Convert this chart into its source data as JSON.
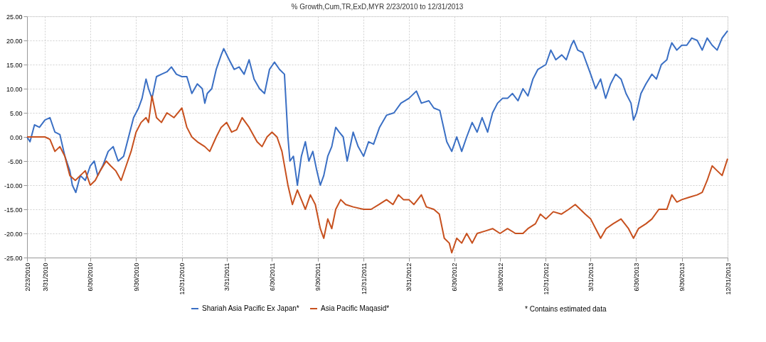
{
  "chart_data": {
    "type": "line",
    "title": "% Growth,Cum,TR,ExD,MYR 2/23/2010 to 12/31/2013",
    "annotations": [
      "* Contains estimated data"
    ],
    "legend": "bottom",
    "grid": true,
    "marker": "none",
    "line_style": "solid",
    "xlim": [
      "2010-02-23",
      "2013-12-31"
    ],
    "xticks": [
      {
        "value": "2010-02-23",
        "label": "2/23/2010"
      },
      {
        "value": "2010-03-31",
        "label": "3/31/2010"
      },
      {
        "value": "2010-06-30",
        "label": "6/30/2010"
      },
      {
        "value": "2010-09-30",
        "label": "9/30/2010"
      },
      {
        "value": "2010-12-31",
        "label": "12/31/2010"
      },
      {
        "value": "2011-03-31",
        "label": "3/31/2011"
      },
      {
        "value": "2011-06-30",
        "label": "6/30/2011"
      },
      {
        "value": "2011-09-30",
        "label": "9/30/2011"
      },
      {
        "value": "2011-12-31",
        "label": "12/31/2011"
      },
      {
        "value": "2012-03-31",
        "label": "3/31/2012"
      },
      {
        "value": "2012-06-30",
        "label": "6/30/2012"
      },
      {
        "value": "2012-09-30",
        "label": "9/30/2012"
      },
      {
        "value": "2012-12-31",
        "label": "12/31/2012"
      },
      {
        "value": "2013-03-31",
        "label": "3/31/2013"
      },
      {
        "value": "2013-06-30",
        "label": "6/30/2013"
      },
      {
        "value": "2013-09-30",
        "label": "9/30/2013"
      },
      {
        "value": "2013-12-31",
        "label": "12/31/2013"
      }
    ],
    "ylim": [
      -25,
      25
    ],
    "yticks": [
      {
        "value": -25,
        "label": "-25.00"
      },
      {
        "value": -20,
        "label": "-20.00"
      },
      {
        "value": -15,
        "label": "-15.00"
      },
      {
        "value": -10,
        "label": "-10.00"
      },
      {
        "value": -5,
        "label": "-5.00"
      },
      {
        "value": 0,
        "label": "0.00"
      },
      {
        "value": 5,
        "label": "5.00"
      },
      {
        "value": 10,
        "label": "10.00"
      },
      {
        "value": 15,
        "label": "15.00"
      },
      {
        "value": 20,
        "label": "20.00"
      },
      {
        "value": 25,
        "label": "25.00"
      }
    ],
    "series": [
      {
        "name": "Shariah Asia Pacific Ex Japan*",
        "color": "#3a6fc4",
        "x": [
          "2010-02-23",
          "2010-03-01",
          "2010-03-10",
          "2010-03-20",
          "2010-03-31",
          "2010-04-10",
          "2010-04-20",
          "2010-04-30",
          "2010-05-10",
          "2010-05-20",
          "2010-05-25",
          "2010-06-01",
          "2010-06-10",
          "2010-06-20",
          "2010-06-30",
          "2010-07-08",
          "2010-07-15",
          "2010-07-25",
          "2010-08-05",
          "2010-08-15",
          "2010-08-25",
          "2010-09-05",
          "2010-09-15",
          "2010-09-25",
          "2010-10-05",
          "2010-10-12",
          "2010-10-20",
          "2010-10-25",
          "2010-11-01",
          "2010-11-10",
          "2010-11-20",
          "2010-12-01",
          "2010-12-10",
          "2010-12-20",
          "2010-12-31",
          "2011-01-10",
          "2011-01-20",
          "2011-01-31",
          "2011-02-10",
          "2011-02-15",
          "2011-02-20",
          "2011-03-01",
          "2011-03-10",
          "2011-03-20",
          "2011-03-25",
          "2011-04-05",
          "2011-04-15",
          "2011-04-25",
          "2011-05-05",
          "2011-05-15",
          "2011-05-25",
          "2011-06-05",
          "2011-06-15",
          "2011-06-25",
          "2011-07-05",
          "2011-07-15",
          "2011-07-25",
          "2011-08-01",
          "2011-08-05",
          "2011-08-12",
          "2011-08-20",
          "2011-08-28",
          "2011-09-05",
          "2011-09-12",
          "2011-09-20",
          "2011-09-28",
          "2011-10-05",
          "2011-10-12",
          "2011-10-20",
          "2011-10-28",
          "2011-11-05",
          "2011-11-12",
          "2011-11-20",
          "2011-11-28",
          "2011-12-10",
          "2011-12-20",
          "2011-12-31",
          "2012-01-10",
          "2012-01-20",
          "2012-02-01",
          "2012-02-15",
          "2012-03-01",
          "2012-03-15",
          "2012-03-31",
          "2012-04-15",
          "2012-04-25",
          "2012-05-10",
          "2012-05-20",
          "2012-06-01",
          "2012-06-15",
          "2012-06-25",
          "2012-07-05",
          "2012-07-15",
          "2012-07-25",
          "2012-08-05",
          "2012-08-15",
          "2012-08-25",
          "2012-09-05",
          "2012-09-15",
          "2012-09-25",
          "2012-10-05",
          "2012-10-15",
          "2012-10-25",
          "2012-11-05",
          "2012-11-15",
          "2012-11-25",
          "2012-12-05",
          "2012-12-15",
          "2012-12-31",
          "2013-01-10",
          "2013-01-20",
          "2013-02-01",
          "2013-02-10",
          "2013-02-20",
          "2013-02-25",
          "2013-03-05",
          "2013-03-15",
          "2013-03-31",
          "2013-04-10",
          "2013-04-20",
          "2013-04-30",
          "2013-05-10",
          "2013-05-20",
          "2013-05-31",
          "2013-06-10",
          "2013-06-20",
          "2013-06-25",
          "2013-07-01",
          "2013-07-10",
          "2013-07-20",
          "2013-08-01",
          "2013-08-10",
          "2013-08-20",
          "2013-08-31",
          "2013-09-05",
          "2013-09-10",
          "2013-09-20",
          "2013-09-30",
          "2013-10-10",
          "2013-10-20",
          "2013-10-31",
          "2013-11-10",
          "2013-11-20",
          "2013-11-30",
          "2013-12-10",
          "2013-12-20",
          "2013-12-31"
        ],
        "values": [
          0,
          -1,
          2.5,
          2,
          3.5,
          4,
          1,
          0.5,
          -4,
          -7,
          -10,
          -11.5,
          -8,
          -9,
          -6,
          -5,
          -8,
          -6,
          -3,
          -2,
          -5,
          -4,
          0,
          4,
          6,
          8,
          12,
          10,
          8,
          12.5,
          13,
          13.5,
          14.5,
          13,
          12.5,
          12.5,
          9,
          11,
          10,
          7,
          9,
          10,
          14,
          17,
          18.3,
          16,
          14,
          14.5,
          13,
          16,
          12,
          10,
          9,
          14,
          15.5,
          14,
          13,
          0,
          -5,
          -4,
          -10,
          -4,
          -1,
          -5,
          -3,
          -7,
          -10,
          -8,
          -4,
          -2,
          2,
          1,
          0,
          -5,
          1,
          -2,
          -4,
          -1,
          -1.5,
          2,
          4.5,
          5,
          7,
          8,
          9.5,
          7,
          7.5,
          6,
          5.5,
          -1,
          -3,
          0,
          -3,
          0,
          3,
          1,
          4,
          1,
          5,
          7,
          8,
          8,
          9,
          7.5,
          10,
          8.5,
          12,
          14,
          15,
          18,
          16,
          17,
          16,
          19,
          20,
          18,
          17.5,
          13,
          10,
          12,
          8,
          11,
          13,
          12,
          9,
          7,
          3.5,
          5,
          9,
          11,
          13,
          12,
          15,
          16,
          18,
          19.5,
          18,
          19,
          19,
          20.5,
          20,
          18,
          20.5,
          19,
          18,
          20.5,
          22
        ]
      },
      {
        "name": "Asia Pacific Maqasid*",
        "color": "#c7501e",
        "x": [
          "2010-02-23",
          "2010-03-31",
          "2010-04-10",
          "2010-04-20",
          "2010-04-30",
          "2010-05-10",
          "2010-05-20",
          "2010-05-31",
          "2010-06-10",
          "2010-06-20",
          "2010-06-30",
          "2010-07-10",
          "2010-07-20",
          "2010-08-01",
          "2010-08-10",
          "2010-08-20",
          "2010-08-31",
          "2010-09-10",
          "2010-09-20",
          "2010-09-30",
          "2010-10-10",
          "2010-10-20",
          "2010-10-25",
          "2010-11-01",
          "2010-11-10",
          "2010-11-20",
          "2010-12-01",
          "2010-12-15",
          "2010-12-31",
          "2011-01-10",
          "2011-01-20",
          "2011-01-31",
          "2011-02-15",
          "2011-02-25",
          "2011-03-10",
          "2011-03-20",
          "2011-03-31",
          "2011-04-10",
          "2011-04-20",
          "2011-05-01",
          "2011-05-15",
          "2011-05-31",
          "2011-06-10",
          "2011-06-20",
          "2011-06-30",
          "2011-07-10",
          "2011-07-20",
          "2011-08-01",
          "2011-08-10",
          "2011-08-20",
          "2011-08-28",
          "2011-09-05",
          "2011-09-15",
          "2011-09-25",
          "2011-10-05",
          "2011-10-12",
          "2011-10-20",
          "2011-10-28",
          "2011-11-05",
          "2011-11-15",
          "2011-11-25",
          "2011-12-10",
          "2011-12-31",
          "2012-01-15",
          "2012-01-31",
          "2012-02-15",
          "2012-02-28",
          "2012-03-10",
          "2012-03-20",
          "2012-03-31",
          "2012-04-10",
          "2012-04-25",
          "2012-05-05",
          "2012-05-20",
          "2012-05-31",
          "2012-06-10",
          "2012-06-20",
          "2012-06-25",
          "2012-07-05",
          "2012-07-15",
          "2012-07-25",
          "2012-08-05",
          "2012-08-15",
          "2012-08-31",
          "2012-09-15",
          "2012-09-30",
          "2012-10-15",
          "2012-10-31",
          "2012-11-15",
          "2012-11-25",
          "2012-12-10",
          "2012-12-20",
          "2012-12-31",
          "2013-01-15",
          "2013-01-31",
          "2013-02-15",
          "2013-02-28",
          "2013-03-10",
          "2013-03-20",
          "2013-03-31",
          "2013-04-10",
          "2013-04-20",
          "2013-05-01",
          "2013-05-15",
          "2013-05-31",
          "2013-06-15",
          "2013-06-25",
          "2013-07-05",
          "2013-07-20",
          "2013-08-01",
          "2013-08-15",
          "2013-08-31",
          "2013-09-10",
          "2013-09-20",
          "2013-09-30",
          "2013-10-15",
          "2013-10-31",
          "2013-11-10",
          "2013-11-20",
          "2013-11-30",
          "2013-12-10",
          "2013-12-20",
          "2013-12-31"
        ],
        "values": [
          0,
          0,
          -0.5,
          -3,
          -2,
          -4,
          -8,
          -9,
          -8,
          -7,
          -10,
          -9,
          -7,
          -5,
          -6,
          -7,
          -9,
          -6,
          -3,
          1,
          3,
          4,
          3,
          8.5,
          4,
          3,
          5,
          4,
          6,
          2,
          0,
          -1,
          -2,
          -3,
          0,
          2,
          3,
          1,
          1.5,
          4,
          2,
          -1,
          -2,
          0,
          1,
          0,
          -3,
          -10,
          -14,
          -11,
          -13,
          -15,
          -12,
          -14,
          -19,
          -21,
          -17,
          -19,
          -15,
          -13,
          -14,
          -14.5,
          -15,
          -15,
          -14,
          -13,
          -14,
          -12,
          -13,
          -13,
          -14,
          -12,
          -14.5,
          -15,
          -16,
          -21,
          -22,
          -24,
          -21,
          -22,
          -20,
          -22,
          -20,
          -19.5,
          -19,
          -20,
          -19,
          -20,
          -20,
          -19,
          -18,
          -16,
          -17,
          -15.5,
          -16,
          -15,
          -14,
          -15,
          -16,
          -17,
          -19,
          -21,
          -19,
          -18,
          -17,
          -19,
          -21,
          -19,
          -18,
          -17,
          -15,
          -15,
          -12,
          -13.5,
          -13,
          -12.5,
          -12,
          -11.5,
          -9,
          -6,
          -7,
          -8,
          -4.5
        ]
      }
    ]
  }
}
